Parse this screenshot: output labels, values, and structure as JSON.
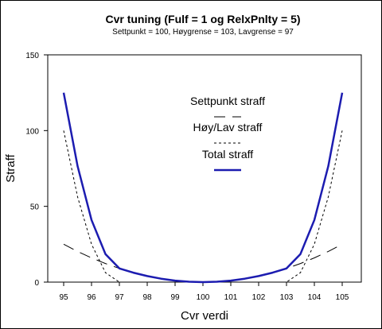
{
  "chart_data": {
    "type": "line",
    "title": "Cvr tuning (Fulf = 1 og RelxPnlty = 5)",
    "subtitle": "Settpunkt = 100, Høygrense = 103, Lavgrense = 97",
    "xlabel": "Cvr verdi",
    "ylabel": "Straff",
    "xlim": [
      95,
      105
    ],
    "ylim": [
      0,
      150
    ],
    "x_ticks": [
      "95",
      "96",
      "97",
      "98",
      "99",
      "100",
      "101",
      "102",
      "103",
      "104",
      "105"
    ],
    "y_ticks": [
      "0",
      "50",
      "100",
      "150"
    ],
    "grid": false,
    "legend_position": "center",
    "series": [
      {
        "name": "Settpunkt straff",
        "style": "long-dash",
        "color": "#000000",
        "x": [
          95,
          95.5,
          96,
          96.5,
          97,
          97.5,
          98,
          98.5,
          99,
          99.5,
          100,
          100.5,
          101,
          101.5,
          102,
          102.5,
          103,
          103.5,
          104,
          104.5,
          105
        ],
        "y": [
          25,
          20.25,
          16,
          12.25,
          9,
          6.25,
          4,
          2.25,
          1,
          0.25,
          0,
          0.25,
          1,
          2.25,
          4,
          6.25,
          9,
          12.25,
          16,
          20.25,
          25
        ]
      },
      {
        "name": "Høy/Lav straff",
        "style": "short-dash",
        "color": "#000000",
        "x": [
          95,
          95.5,
          96,
          96.5,
          97,
          97.5,
          103,
          103.5,
          104,
          104.5,
          105
        ],
        "y": [
          100,
          56.25,
          25,
          6.25,
          0,
          0,
          0,
          6.25,
          25,
          56.25,
          100
        ]
      },
      {
        "name": "Total straff",
        "style": "solid",
        "color": "#1c1cb0",
        "x": [
          95,
          95.5,
          96,
          96.5,
          97,
          97.5,
          98,
          98.5,
          99,
          99.5,
          100,
          100.5,
          101,
          101.5,
          102,
          102.5,
          103,
          103.5,
          104,
          104.5,
          105
        ],
        "y": [
          125,
          76.5,
          41,
          18.5,
          9,
          6.25,
          4,
          2.25,
          1,
          0.25,
          0,
          0.25,
          1,
          2.25,
          4,
          6.25,
          9,
          18.5,
          41,
          76.5,
          125
        ]
      }
    ]
  }
}
